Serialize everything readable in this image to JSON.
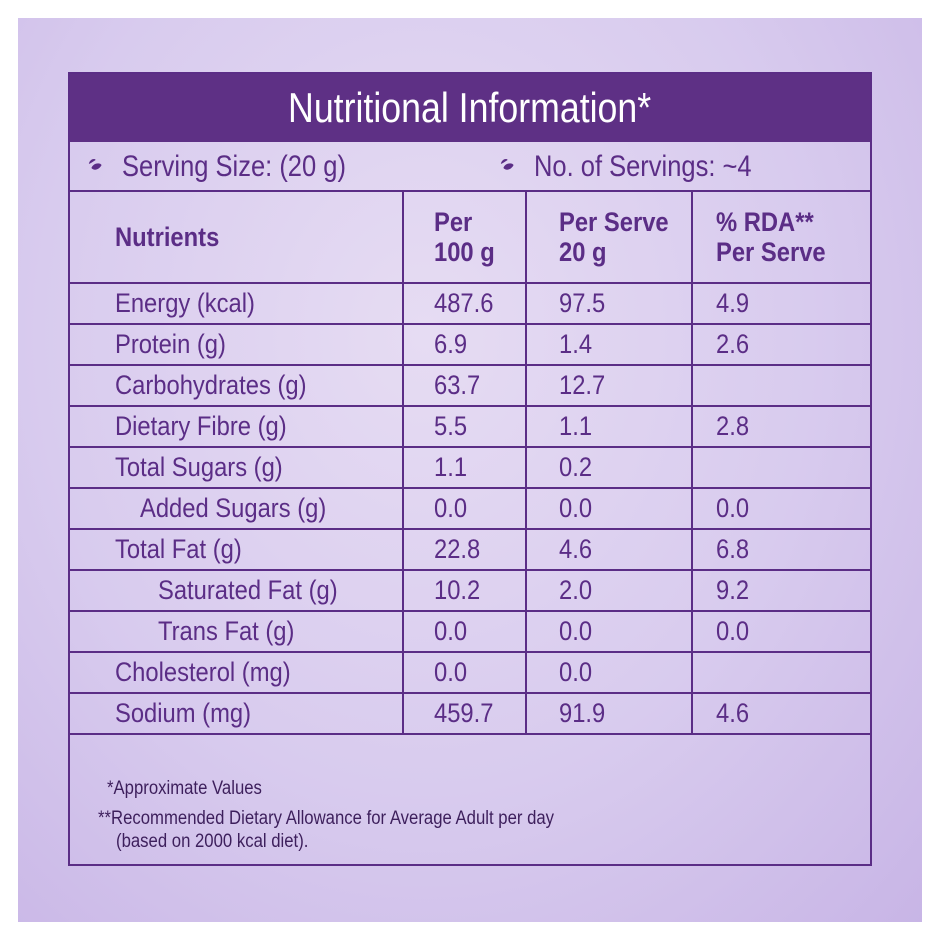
{
  "title": "Nutritional Information*",
  "serving_size": "Serving Size: (20 g)",
  "servings": "No. of Servings: ~4",
  "headers": [
    "Nutrients",
    "Per\n100 g",
    "Per Serve\n20 g",
    "% RDA**\nPer Serve"
  ],
  "header_lines": [
    [
      "Nutrients"
    ],
    [
      "Per",
      "100 g"
    ],
    [
      "Per Serve",
      "20 g"
    ],
    [
      "% RDA**",
      "Per Serve"
    ]
  ],
  "rows": [
    {
      "name": "Energy (kcal)",
      "per100": "487.6",
      "perServe": "97.5",
      "rda": "4.9",
      "indent": 0
    },
    {
      "name": "Protein (g)",
      "per100": "6.9",
      "perServe": "1.4",
      "rda": "2.6",
      "indent": 0
    },
    {
      "name": "Carbohydrates (g)",
      "per100": "63.7",
      "perServe": "12.7",
      "rda": "",
      "indent": 0
    },
    {
      "name": "Dietary Fibre (g)",
      "per100": "5.5",
      "perServe": "1.1",
      "rda": "2.8",
      "indent": 0
    },
    {
      "name": "Total Sugars (g)",
      "per100": "1.1",
      "perServe": "0.2",
      "rda": "",
      "indent": 0
    },
    {
      "name": "Added Sugars (g)",
      "per100": "0.0",
      "perServe": "0.0",
      "rda": "0.0",
      "indent": 1
    },
    {
      "name": "Total Fat (g)",
      "per100": "22.8",
      "perServe": "4.6",
      "rda": "6.8",
      "indent": 0
    },
    {
      "name": "Saturated Fat (g)",
      "per100": "10.2",
      "perServe": "2.0",
      "rda": "9.2",
      "indent": 2
    },
    {
      "name": "Trans Fat (g)",
      "per100": "0.0",
      "perServe": "0.0",
      "rda": "0.0",
      "indent": 2
    },
    {
      "name": "Cholesterol (mg)",
      "per100": "0.0",
      "perServe": "0.0",
      "rda": "",
      "indent": 0
    },
    {
      "name": "Sodium (mg)",
      "per100": "459.7",
      "perServe": "91.9",
      "rda": "4.6",
      "indent": 0
    }
  ],
  "footnotes": {
    "approx": "*Approximate Values",
    "rda_line1": "**Recommended Dietary Allowance for Average Adult per day",
    "rda_line2": "(based on 2000 kcal diet)."
  },
  "icons": {
    "bullet": "leaf-icon"
  },
  "colors": {
    "accent": "#5e3085",
    "text": "#5b2d86",
    "background": "#d8cbee"
  }
}
